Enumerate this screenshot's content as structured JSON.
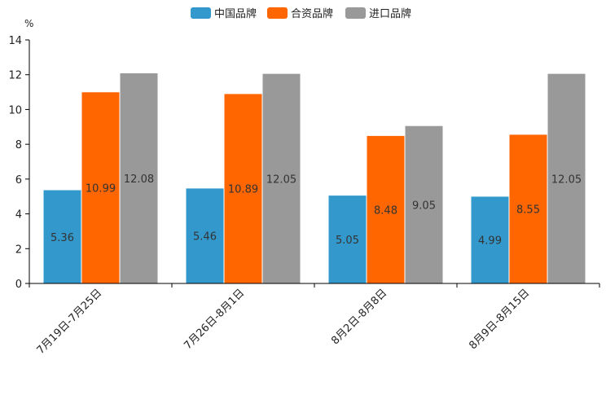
{
  "chart_data": {
    "type": "bar",
    "title": "",
    "xlabel": "",
    "ylabel": "%",
    "ylim": [
      0,
      14
    ],
    "yticks": [
      0,
      2,
      4,
      6,
      8,
      10,
      12,
      14
    ],
    "grid": false,
    "legend_position": "top-center",
    "categories": [
      "7月19日-7月25日",
      "7月26日-8月1日",
      "8月2日-8月8日",
      "8月9日-8月15日"
    ],
    "series": [
      {
        "name": "中国品牌",
        "color": "#3399cc",
        "values": [
          5.36,
          5.46,
          5.05,
          4.99
        ],
        "labels": [
          "5.36",
          "5.46",
          "5.05",
          "4.99"
        ]
      },
      {
        "name": "合资品牌",
        "color": "#ff6600",
        "values": [
          10.99,
          10.89,
          8.48,
          8.55
        ],
        "labels": [
          "10.99",
          "10.89",
          "8.48",
          "8.55"
        ]
      },
      {
        "name": "进口品牌",
        "color": "#999999",
        "values": [
          12.08,
          12.05,
          9.05,
          12.05
        ],
        "labels": [
          "12.08",
          "12.05",
          "9.05",
          "12.05"
        ]
      }
    ]
  }
}
